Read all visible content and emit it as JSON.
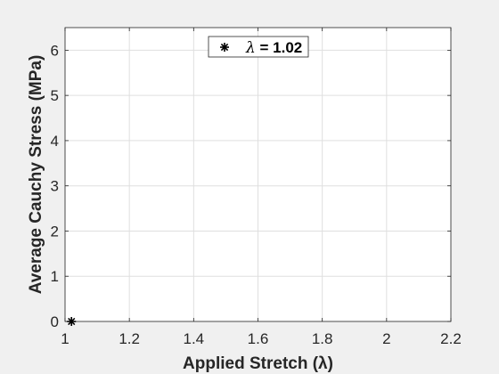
{
  "chart_data": {
    "type": "scatter",
    "title": "",
    "xlabel": "Applied Stretch (λ)",
    "ylabel": "Average Cauchy Stress (MPa)",
    "xlim": [
      1,
      2.2
    ],
    "ylim": [
      0,
      6.5
    ],
    "xticks": [
      1,
      1.2,
      1.4,
      1.6,
      1.8,
      2,
      2.2
    ],
    "xtick_labels": [
      "1",
      "1.2",
      "1.4",
      "1.6",
      "1.8",
      "2",
      "2.2"
    ],
    "yticks": [
      0,
      1,
      2,
      3,
      4,
      5,
      6
    ],
    "ytick_labels": [
      "0",
      "1",
      "2",
      "3",
      "4",
      "5",
      "6"
    ],
    "grid": true,
    "legend_position": "top-center",
    "series": [
      {
        "name": "λ = 1.02",
        "marker": "asterisk",
        "color": "#000000",
        "points": [
          {
            "x": 1.02,
            "y": 0
          }
        ]
      }
    ]
  },
  "colors": {
    "figure_background": "#f0f0f0",
    "axes_background": "#ffffff",
    "grid": "#dfdfdf",
    "axis": "#262626"
  }
}
